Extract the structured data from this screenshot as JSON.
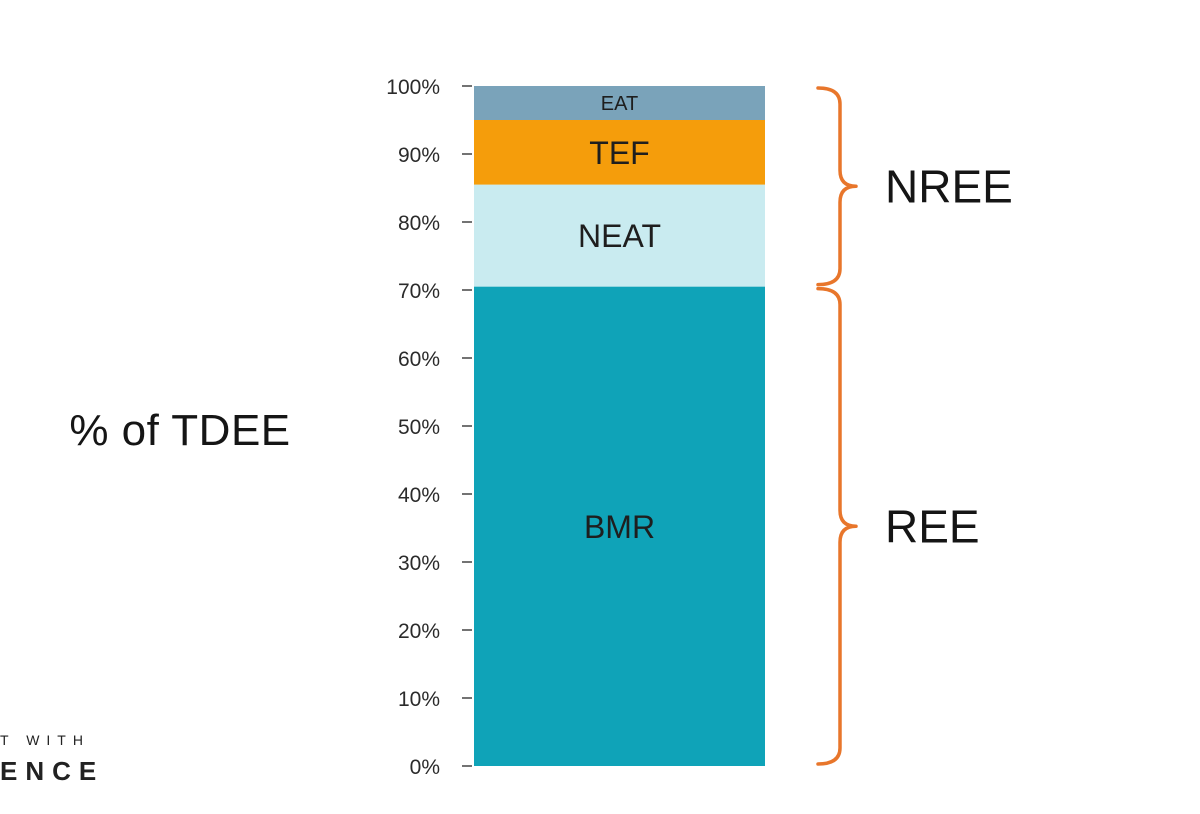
{
  "chart_data": {
    "type": "bar",
    "stacked": true,
    "categories": [
      ""
    ],
    "series": [
      {
        "name": "BMR",
        "values": [
          70.5
        ],
        "color": "#0FA3B8",
        "label_color": "#D9F4F8"
      },
      {
        "name": "NEAT",
        "values": [
          15.0
        ],
        "color": "#C9EBF0",
        "label_color": "#1e1e1e"
      },
      {
        "name": "TEF",
        "values": [
          9.5
        ],
        "color": "#F59D0B",
        "label_color": "#1e1e1e"
      },
      {
        "name": "EAT",
        "values": [
          5.0
        ],
        "color": "#7AA3BA",
        "label_color": "#1e1e1e"
      }
    ],
    "ylabel": "% of TDEE",
    "ylim": [
      0,
      100
    ],
    "yticks": [
      "0%",
      "10%",
      "20%",
      "30%",
      "40%",
      "50%",
      "60%",
      "70%",
      "80%",
      "90%",
      "100%"
    ],
    "annotations": [
      {
        "label": "NREE",
        "from": 70.5,
        "to": 100
      },
      {
        "label": "REE",
        "from": 0,
        "to": 70.5
      }
    ],
    "brace_color": "#E8762B",
    "legend": "none",
    "grid": false
  },
  "watermark": {
    "line1": "T WITH",
    "line2": "ENCE"
  }
}
